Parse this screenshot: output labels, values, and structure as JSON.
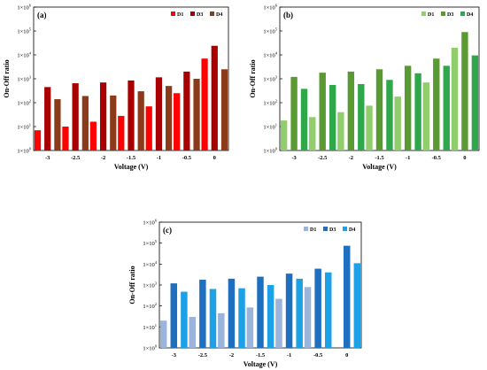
{
  "chart_data": [
    {
      "type": "bar",
      "panel_label": "(a)",
      "categories": [
        "-3",
        "-2.5",
        "-2",
        "-1.5",
        "-1",
        "-0.5",
        "0"
      ],
      "xlabel": "Voltage (V)",
      "ylabel": "On-Off ratio",
      "yscale": "log",
      "ylim": [
        1,
        1000000
      ],
      "yticks": [
        {
          "base": "1×10",
          "exp": "0"
        },
        {
          "base": "1×10",
          "exp": "1"
        },
        {
          "base": "1×10",
          "exp": "2"
        },
        {
          "base": "1×10",
          "exp": "3"
        },
        {
          "base": "1×10",
          "exp": "4"
        },
        {
          "base": "1×10",
          "exp": "5"
        },
        {
          "base": "1×10",
          "exp": "6"
        }
      ],
      "legend_position": "top-right",
      "series": [
        {
          "name": "D1",
          "color": "#ff0000",
          "values": [
            7,
            10,
            16,
            28,
            70,
            250,
            7000
          ]
        },
        {
          "name": "D3",
          "color": "#a80000",
          "values": [
            450,
            650,
            700,
            850,
            1150,
            2000,
            24000
          ]
        },
        {
          "name": "D4",
          "color": "#8b3a1a",
          "values": [
            140,
            190,
            200,
            300,
            500,
            1000,
            2500
          ]
        }
      ]
    },
    {
      "type": "bar",
      "panel_label": "(b)",
      "categories": [
        "-3",
        "-2.5",
        "-2",
        "-1.5",
        "-1",
        "-0.5",
        "0"
      ],
      "xlabel": "Voltage (V)",
      "ylabel": "On-Off ratio",
      "yscale": "log",
      "ylim": [
        1,
        1000000
      ],
      "yticks": [
        {
          "base": "1×10",
          "exp": "0"
        },
        {
          "base": "1×10",
          "exp": "1"
        },
        {
          "base": "1×10",
          "exp": "2"
        },
        {
          "base": "1×10",
          "exp": "3"
        },
        {
          "base": "1×10",
          "exp": "4"
        },
        {
          "base": "1×10",
          "exp": "5"
        },
        {
          "base": "1×10",
          "exp": "6"
        }
      ],
      "legend_position": "top-right",
      "series": [
        {
          "name": "D1",
          "color": "#8fce6a",
          "values": [
            18,
            25,
            40,
            75,
            180,
            700,
            20000
          ]
        },
        {
          "name": "D3",
          "color": "#5a9a32",
          "values": [
            1200,
            1800,
            2000,
            2500,
            3500,
            7000,
            90000
          ]
        },
        {
          "name": "D4",
          "color": "#2ea84a",
          "values": [
            380,
            550,
            600,
            900,
            1700,
            3500,
            9500
          ]
        }
      ]
    },
    {
      "type": "bar",
      "panel_label": "(c)",
      "categories": [
        "-3",
        "-2.5",
        "-2",
        "-1.5",
        "-1",
        "-0.5",
        "0"
      ],
      "xlabel": "Voltage (V)",
      "ylabel": "On-Off ratio",
      "yscale": "log",
      "ylim": [
        1,
        1000000
      ],
      "yticks": [
        {
          "base": "1×10",
          "exp": "0"
        },
        {
          "base": "1×10",
          "exp": "1"
        },
        {
          "base": "1×10",
          "exp": "2"
        },
        {
          "base": "1×10",
          "exp": "3"
        },
        {
          "base": "1×10",
          "exp": "4"
        },
        {
          "base": "1×10",
          "exp": "5"
        },
        {
          "base": "1×10",
          "exp": "6"
        }
      ],
      "legend_position": "top-right",
      "series": [
        {
          "name": "D1",
          "color": "#9bb4dc",
          "values": [
            20,
            30,
            45,
            85,
            220,
            800,
            null
          ]
        },
        {
          "name": "D3",
          "color": "#1f6fc0",
          "values": [
            1200,
            1800,
            2000,
            2500,
            3500,
            6000,
            75000
          ]
        },
        {
          "name": "D4",
          "color": "#1ea0e6",
          "values": [
            480,
            650,
            700,
            1000,
            2000,
            4000,
            11000
          ]
        }
      ]
    }
  ]
}
